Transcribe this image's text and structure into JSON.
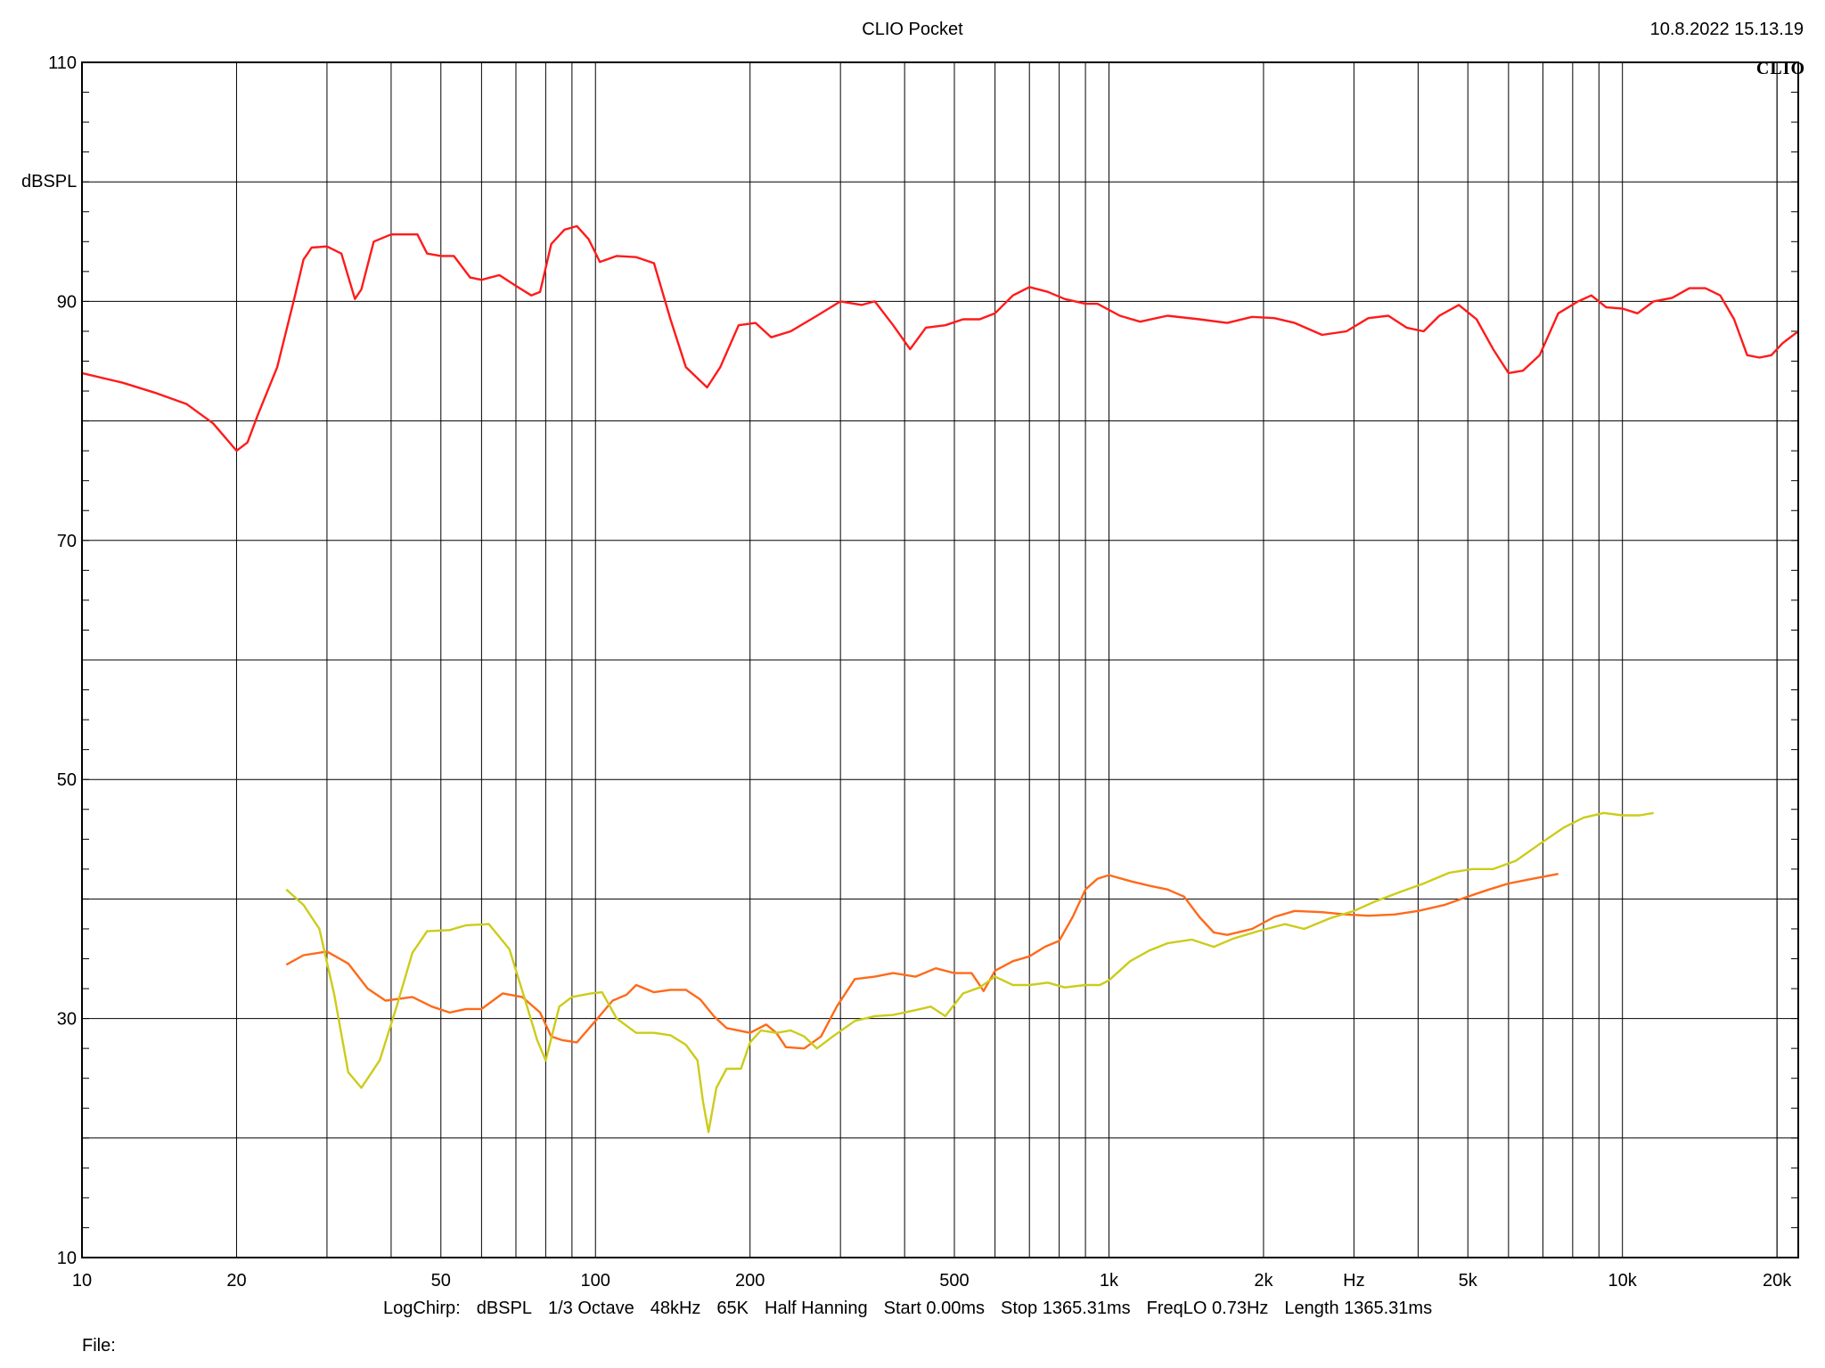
{
  "header": {
    "title": "CLIO Pocket",
    "timestamp": "10.8.2022 15.13.19",
    "brand": "CLIO"
  },
  "footer": {
    "settings": [
      "LogChirp:",
      "dBSPL",
      "1/3 Octave",
      "48kHz",
      "65K",
      "Half Hanning",
      "Start 0.00ms",
      "Stop 1365.31ms",
      "FreqLO 0.73Hz",
      "Length 1365.31ms"
    ],
    "file_label": "File:"
  },
  "chart_data": {
    "type": "line",
    "title": "CLIO Pocket",
    "xlabel": "Hz",
    "ylabel": "dBSPL",
    "x_scale": "log",
    "xlim": [
      10,
      22000
    ],
    "ylim": [
      10,
      110
    ],
    "grid": true,
    "x_ticks": [
      {
        "value": 10,
        "label": "10"
      },
      {
        "value": 20,
        "label": "20"
      },
      {
        "value": 50,
        "label": "50"
      },
      {
        "value": 100,
        "label": "100"
      },
      {
        "value": 200,
        "label": "200"
      },
      {
        "value": 500,
        "label": "500"
      },
      {
        "value": 1000,
        "label": "1k"
      },
      {
        "value": 2000,
        "label": "2k"
      },
      {
        "value": 5000,
        "label": "5k"
      },
      {
        "value": 10000,
        "label": "10k"
      },
      {
        "value": 20000,
        "label": "20k"
      }
    ],
    "x_unit_tick": {
      "value": 3000,
      "label": "Hz"
    },
    "y_ticks": [
      {
        "value": 110,
        "label": "110"
      },
      {
        "value": 90,
        "label": "90"
      },
      {
        "value": 70,
        "label": "70"
      },
      {
        "value": 50,
        "label": "50"
      },
      {
        "value": 30,
        "label": "30"
      },
      {
        "value": 10,
        "label": "10"
      }
    ],
    "series": [
      {
        "color": "#ff1a1a",
        "points": [
          [
            10,
            84.0
          ],
          [
            12,
            83.2
          ],
          [
            14,
            82.3
          ],
          [
            16,
            81.4
          ],
          [
            18,
            79.8
          ],
          [
            20,
            77.5
          ],
          [
            21,
            78.2
          ],
          [
            22,
            80.5
          ],
          [
            24,
            84.5
          ],
          [
            26,
            90.5
          ],
          [
            27,
            93.5
          ],
          [
            28,
            94.5
          ],
          [
            30,
            94.6
          ],
          [
            32,
            94.0
          ],
          [
            34,
            90.2
          ],
          [
            35,
            91.0
          ],
          [
            37,
            95.0
          ],
          [
            40,
            95.6
          ],
          [
            45,
            95.6
          ],
          [
            47,
            94.0
          ],
          [
            50,
            93.8
          ],
          [
            53,
            93.8
          ],
          [
            57,
            92.0
          ],
          [
            60,
            91.8
          ],
          [
            65,
            92.2
          ],
          [
            70,
            91.3
          ],
          [
            75,
            90.5
          ],
          [
            78,
            90.8
          ],
          [
            82,
            94.8
          ],
          [
            87,
            96.0
          ],
          [
            92,
            96.3
          ],
          [
            97,
            95.2
          ],
          [
            102,
            93.3
          ],
          [
            110,
            93.8
          ],
          [
            120,
            93.7
          ],
          [
            130,
            93.2
          ],
          [
            140,
            88.5
          ],
          [
            150,
            84.5
          ],
          [
            165,
            82.8
          ],
          [
            175,
            84.5
          ],
          [
            190,
            88.0
          ],
          [
            205,
            88.2
          ],
          [
            220,
            87.0
          ],
          [
            240,
            87.5
          ],
          [
            270,
            88.8
          ],
          [
            300,
            90.0
          ],
          [
            330,
            89.7
          ],
          [
            350,
            90.0
          ],
          [
            380,
            88.0
          ],
          [
            410,
            86.0
          ],
          [
            440,
            87.8
          ],
          [
            480,
            88.0
          ],
          [
            520,
            88.5
          ],
          [
            560,
            88.5
          ],
          [
            600,
            89.0
          ],
          [
            650,
            90.5
          ],
          [
            700,
            91.2
          ],
          [
            760,
            90.8
          ],
          [
            820,
            90.2
          ],
          [
            900,
            89.8
          ],
          [
            950,
            89.8
          ],
          [
            1050,
            88.8
          ],
          [
            1150,
            88.3
          ],
          [
            1300,
            88.8
          ],
          [
            1500,
            88.5
          ],
          [
            1700,
            88.2
          ],
          [
            1900,
            88.7
          ],
          [
            2100,
            88.6
          ],
          [
            2300,
            88.2
          ],
          [
            2600,
            87.2
          ],
          [
            2900,
            87.5
          ],
          [
            3200,
            88.6
          ],
          [
            3500,
            88.8
          ],
          [
            3800,
            87.8
          ],
          [
            4100,
            87.5
          ],
          [
            4400,
            88.8
          ],
          [
            4800,
            89.7
          ],
          [
            5200,
            88.5
          ],
          [
            5600,
            86.0
          ],
          [
            6000,
            84.0
          ],
          [
            6400,
            84.2
          ],
          [
            6900,
            85.5
          ],
          [
            7500,
            89.0
          ],
          [
            8200,
            90.0
          ],
          [
            8700,
            90.5
          ],
          [
            9300,
            89.5
          ],
          [
            10000,
            89.4
          ],
          [
            10700,
            89.0
          ],
          [
            11500,
            90.0
          ],
          [
            12500,
            90.3
          ],
          [
            13500,
            91.1
          ],
          [
            14500,
            91.1
          ],
          [
            15500,
            90.5
          ],
          [
            16500,
            88.5
          ],
          [
            17500,
            85.5
          ],
          [
            18500,
            85.3
          ],
          [
            19500,
            85.5
          ],
          [
            20500,
            86.5
          ],
          [
            22000,
            87.5
          ]
        ]
      },
      {
        "color": "#ff6a1a",
        "points": [
          [
            25,
            34.5
          ],
          [
            27,
            35.3
          ],
          [
            30,
            35.6
          ],
          [
            33,
            34.6
          ],
          [
            36,
            32.5
          ],
          [
            39,
            31.5
          ],
          [
            44,
            31.8
          ],
          [
            48,
            31.0
          ],
          [
            52,
            30.5
          ],
          [
            56,
            30.8
          ],
          [
            60,
            30.8
          ],
          [
            66,
            32.1
          ],
          [
            72,
            31.8
          ],
          [
            78,
            30.5
          ],
          [
            82,
            28.5
          ],
          [
            86,
            28.2
          ],
          [
            92,
            28.0
          ],
          [
            100,
            29.8
          ],
          [
            108,
            31.5
          ],
          [
            115,
            32.0
          ],
          [
            120,
            32.8
          ],
          [
            130,
            32.2
          ],
          [
            140,
            32.4
          ],
          [
            150,
            32.4
          ],
          [
            160,
            31.6
          ],
          [
            170,
            30.2
          ],
          [
            180,
            29.2
          ],
          [
            200,
            28.8
          ],
          [
            215,
            29.5
          ],
          [
            225,
            28.8
          ],
          [
            235,
            27.6
          ],
          [
            255,
            27.5
          ],
          [
            275,
            28.5
          ],
          [
            295,
            31.0
          ],
          [
            320,
            33.3
          ],
          [
            350,
            33.5
          ],
          [
            380,
            33.8
          ],
          [
            420,
            33.5
          ],
          [
            460,
            34.2
          ],
          [
            500,
            33.8
          ],
          [
            540,
            33.8
          ],
          [
            570,
            32.3
          ],
          [
            600,
            34.0
          ],
          [
            650,
            34.8
          ],
          [
            700,
            35.2
          ],
          [
            750,
            36.0
          ],
          [
            800,
            36.5
          ],
          [
            850,
            38.5
          ],
          [
            900,
            40.8
          ],
          [
            950,
            41.7
          ],
          [
            1000,
            42.0
          ],
          [
            1100,
            41.5
          ],
          [
            1200,
            41.1
          ],
          [
            1300,
            40.8
          ],
          [
            1400,
            40.2
          ],
          [
            1500,
            38.5
          ],
          [
            1600,
            37.2
          ],
          [
            1700,
            37.0
          ],
          [
            1900,
            37.5
          ],
          [
            2100,
            38.5
          ],
          [
            2300,
            39.0
          ],
          [
            2600,
            38.9
          ],
          [
            2900,
            38.7
          ],
          [
            3200,
            38.6
          ],
          [
            3600,
            38.7
          ],
          [
            4000,
            39.0
          ],
          [
            4500,
            39.5
          ],
          [
            5000,
            40.2
          ],
          [
            5500,
            40.8
          ],
          [
            6000,
            41.3
          ],
          [
            6700,
            41.7
          ],
          [
            7500,
            42.1
          ]
        ]
      },
      {
        "color": "#cccc1a",
        "points": [
          [
            25,
            40.8
          ],
          [
            27,
            39.5
          ],
          [
            29,
            37.5
          ],
          [
            31,
            32.0
          ],
          [
            33,
            25.5
          ],
          [
            35,
            24.2
          ],
          [
            38,
            26.5
          ],
          [
            41,
            31.0
          ],
          [
            44,
            35.5
          ],
          [
            47,
            37.3
          ],
          [
            52,
            37.4
          ],
          [
            56,
            37.8
          ],
          [
            62,
            37.9
          ],
          [
            68,
            35.8
          ],
          [
            73,
            31.5
          ],
          [
            77,
            28.2
          ],
          [
            80,
            26.5
          ],
          [
            85,
            31.0
          ],
          [
            90,
            31.8
          ],
          [
            98,
            32.1
          ],
          [
            103,
            32.2
          ],
          [
            110,
            30.0
          ],
          [
            120,
            28.8
          ],
          [
            130,
            28.8
          ],
          [
            140,
            28.6
          ],
          [
            150,
            27.8
          ],
          [
            158,
            26.5
          ],
          [
            162,
            23.0
          ],
          [
            166,
            20.5
          ],
          [
            172,
            24.2
          ],
          [
            180,
            25.8
          ],
          [
            192,
            25.8
          ],
          [
            200,
            28.0
          ],
          [
            210,
            29.0
          ],
          [
            225,
            28.8
          ],
          [
            240,
            29.0
          ],
          [
            255,
            28.5
          ],
          [
            270,
            27.5
          ],
          [
            290,
            28.5
          ],
          [
            320,
            29.8
          ],
          [
            350,
            30.2
          ],
          [
            380,
            30.3
          ],
          [
            420,
            30.7
          ],
          [
            450,
            31.0
          ],
          [
            480,
            30.2
          ],
          [
            520,
            32.1
          ],
          [
            560,
            32.6
          ],
          [
            600,
            33.5
          ],
          [
            650,
            32.8
          ],
          [
            700,
            32.8
          ],
          [
            760,
            33.0
          ],
          [
            820,
            32.6
          ],
          [
            900,
            32.8
          ],
          [
            960,
            32.8
          ],
          [
            1000,
            33.2
          ],
          [
            1100,
            34.8
          ],
          [
            1200,
            35.7
          ],
          [
            1300,
            36.3
          ],
          [
            1450,
            36.6
          ],
          [
            1600,
            36.0
          ],
          [
            1750,
            36.7
          ],
          [
            1950,
            37.3
          ],
          [
            2200,
            37.9
          ],
          [
            2400,
            37.5
          ],
          [
            2700,
            38.4
          ],
          [
            3000,
            39.0
          ],
          [
            3300,
            39.8
          ],
          [
            3700,
            40.6
          ],
          [
            4100,
            41.3
          ],
          [
            4600,
            42.2
          ],
          [
            5100,
            42.5
          ],
          [
            5600,
            42.5
          ],
          [
            6200,
            43.2
          ],
          [
            6900,
            44.6
          ],
          [
            7700,
            46.0
          ],
          [
            8400,
            46.8
          ],
          [
            9200,
            47.2
          ],
          [
            10000,
            47.0
          ],
          [
            10800,
            47.0
          ],
          [
            11500,
            47.2
          ]
        ]
      }
    ]
  }
}
